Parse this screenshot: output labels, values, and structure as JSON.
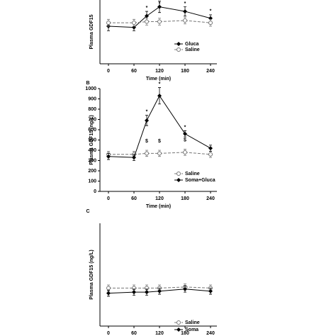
{
  "chart_data": [
    {
      "type": "line",
      "ylabel": "Plasma GDF15",
      "xlabel": "Time (min)",
      "x": [
        0,
        60,
        90,
        120,
        180,
        240
      ],
      "xlim": [
        -20,
        255
      ],
      "xticks": [
        0,
        60,
        120,
        180,
        240
      ],
      "ylim": [
        0,
        560
      ],
      "legend": "lower right",
      "series": [
        {
          "name": "Gluca",
          "color": "#000000",
          "marker": "diamond",
          "dash": false,
          "values": [
            330,
            320,
            420,
            500,
            460,
            400
          ],
          "errors": [
            40,
            30,
            40,
            50,
            40,
            30
          ]
        },
        {
          "name": "Saline",
          "color": "#777777",
          "marker": "open-circle",
          "dash": true,
          "values": [
            360,
            360,
            370,
            370,
            380,
            360
          ],
          "errors": [
            30,
            30,
            30,
            30,
            30,
            30
          ]
        }
      ],
      "annotations": [
        {
          "text": "*",
          "x": 90
        },
        {
          "text": "*",
          "x": 120
        },
        {
          "text": "*",
          "x": 180
        },
        {
          "text": "*",
          "x": 240
        }
      ]
    },
    {
      "type": "line",
      "panel": "B",
      "ylabel": "Plasma GDF15 (ng/L)",
      "xlabel": "Time (min)",
      "x": [
        0,
        60,
        90,
        120,
        180,
        240
      ],
      "xlim": [
        -20,
        255
      ],
      "xticks": [
        0,
        60,
        120,
        180,
        240
      ],
      "ylim": [
        0,
        1000
      ],
      "yticks": [
        0,
        100,
        200,
        300,
        400,
        500,
        600,
        700,
        800,
        900,
        1000
      ],
      "legend": "lower right",
      "series": [
        {
          "name": "Saline",
          "color": "#777777",
          "marker": "open-circle",
          "dash": true,
          "values": [
            360,
            360,
            370,
            370,
            380,
            360
          ],
          "errors": [
            30,
            30,
            30,
            30,
            30,
            30
          ]
        },
        {
          "name": "Soma+Gluca",
          "color": "#000000",
          "marker": "diamond",
          "dash": false,
          "values": [
            340,
            330,
            690,
            930,
            560,
            420
          ],
          "errors": [
            30,
            30,
            50,
            80,
            30,
            30
          ]
        }
      ],
      "annotations": [
        {
          "text": "*",
          "x": 90
        },
        {
          "text": "*",
          "x": 120
        },
        {
          "text": "*",
          "x": 180
        },
        {
          "text": "$",
          "x": 90
        },
        {
          "text": "$",
          "x": 120
        },
        {
          "text": "$",
          "x": 180
        }
      ]
    },
    {
      "type": "line",
      "panel": "C",
      "ylabel": "Plasma GDF15 (ng/L)",
      "x": [
        0,
        60,
        90,
        120,
        180,
        240
      ],
      "xlim": [
        -20,
        255
      ],
      "xticks": [
        0,
        60,
        120,
        180,
        240
      ],
      "ylim": [
        0,
        1000
      ],
      "legend": "lower right",
      "series": [
        {
          "name": "Saline",
          "color": "#777777",
          "marker": "open-circle",
          "dash": true,
          "values": [
            370,
            370,
            370,
            370,
            380,
            370
          ],
          "errors": [
            30,
            30,
            30,
            30,
            30,
            30
          ]
        },
        {
          "name": "Soma",
          "color": "#000000",
          "marker": "diamond",
          "dash": false,
          "values": [
            320,
            330,
            330,
            340,
            360,
            340
          ],
          "errors": [
            30,
            30,
            30,
            30,
            30,
            30
          ]
        }
      ],
      "annotations": []
    }
  ]
}
